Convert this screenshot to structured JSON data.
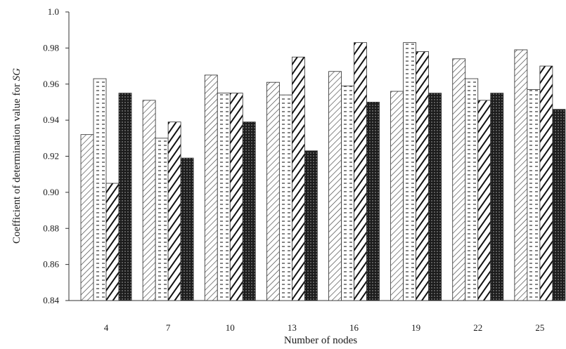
{
  "chart_data": {
    "type": "bar",
    "title": "",
    "xlabel": "Number of nodes",
    "ylabel_prefix": "Coefficient of determination value for ",
    "ylabel_var": "SG",
    "categories": [
      "4",
      "7",
      "10",
      "13",
      "16",
      "19",
      "22",
      "25"
    ],
    "ylim": [
      0.84,
      1.0
    ],
    "yticks": [
      0.84,
      0.86,
      0.88,
      0.9,
      0.92,
      0.94,
      0.96,
      0.98,
      1.0
    ],
    "ytick_labels": [
      "0.84",
      "0.86",
      "0.88",
      "0.90",
      "0.92",
      "0.94",
      "0.96",
      "0.98",
      "1.0"
    ],
    "grid": false,
    "legend": "none",
    "series": [
      {
        "pattern": "diagonal-thin",
        "values": [
          0.932,
          0.951,
          0.965,
          0.961,
          0.967,
          0.956,
          0.974,
          0.979
        ]
      },
      {
        "pattern": "dashed-horizontal",
        "values": [
          0.963,
          0.93,
          0.955,
          0.954,
          0.959,
          0.983,
          0.963,
          0.957
        ]
      },
      {
        "pattern": "diagonal-bold",
        "values": [
          0.905,
          0.939,
          0.955,
          0.975,
          0.983,
          0.978,
          0.951,
          0.97
        ]
      },
      {
        "pattern": "dotted-dark",
        "values": [
          0.955,
          0.919,
          0.939,
          0.923,
          0.95,
          0.955,
          0.955,
          0.946
        ]
      }
    ]
  }
}
